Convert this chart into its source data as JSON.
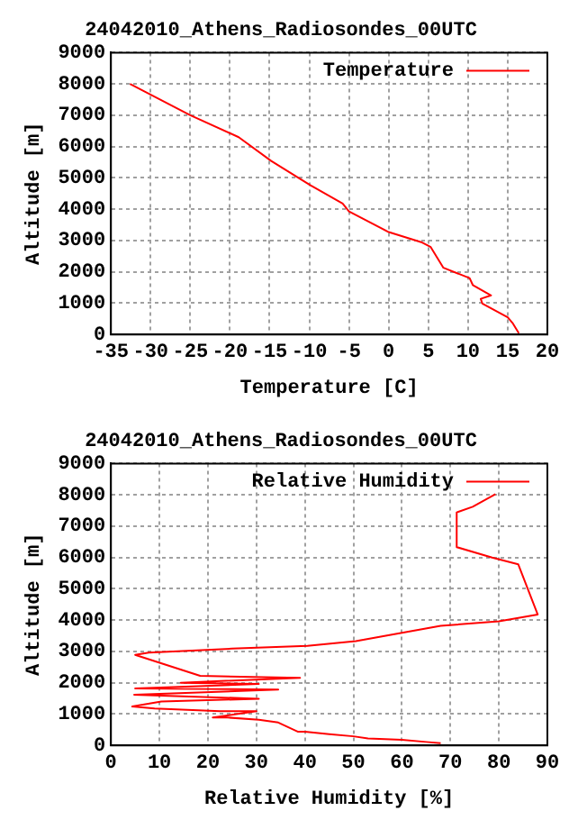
{
  "chart_data": [
    {
      "type": "line",
      "title": "24042010_Athens_Radiosondes_00UTC",
      "xlabel": "Temperature [C]",
      "ylabel": "Altitude [m]",
      "xlim": [
        -35,
        20
      ],
      "xticks": [
        -35,
        -30,
        -25,
        -20,
        -15,
        -10,
        -5,
        0,
        5,
        10,
        15,
        20
      ],
      "ylim": [
        0,
        9000
      ],
      "yticks": [
        0,
        1000,
        2000,
        3000,
        4000,
        5000,
        6000,
        7000,
        8000,
        9000
      ],
      "grid": true,
      "legend": "top right",
      "series": [
        {
          "name": "Temperature",
          "color": "#ff0000",
          "x": [
            -32.6,
            -25,
            -18.9,
            -14.8,
            -9.9,
            -5.8,
            -5,
            0,
            4.1,
            5.3,
            6.9,
            10.2,
            10.6,
            12.9,
            11.6,
            11.8,
            15,
            15.6,
            16.4
          ],
          "values": [
            8000,
            7000,
            6300,
            5540,
            4770,
            4180,
            3930,
            3270,
            2950,
            2790,
            2130,
            1800,
            1580,
            1250,
            1140,
            990,
            550,
            370,
            40
          ]
        }
      ]
    },
    {
      "type": "line",
      "title": "24042010_Athens_Radiosondes_00UTC",
      "xlabel": "Relative Humidity [%]",
      "ylabel": "Altitude [m]",
      "xlim": [
        0,
        90
      ],
      "xticks": [
        0,
        10,
        20,
        30,
        40,
        50,
        60,
        70,
        80,
        90
      ],
      "ylim": [
        0,
        9000
      ],
      "yticks": [
        0,
        1000,
        2000,
        3000,
        4000,
        5000,
        6000,
        7000,
        8000,
        9000
      ],
      "grid": true,
      "legend": "top right",
      "series": [
        {
          "name": "Relative Humidity",
          "color": "#ff0000",
          "x": [
            68,
            65,
            60,
            53,
            50,
            45,
            40,
            38.5,
            34.5,
            30.5,
            24,
            21,
            30,
            22.5,
            9,
            4.4,
            10.4,
            30.5,
            4.8,
            34.5,
            5,
            30.5,
            14.4,
            39,
            18.4,
            5,
            7.8,
            25,
            40.5,
            50.5,
            68,
            80,
            88,
            84,
            78.6,
            71.3,
            71.3,
            74.6,
            79.3
          ],
          "values": [
            70,
            110,
            180,
            220,
            290,
            360,
            440,
            440,
            730,
            820,
            890,
            890,
            1090,
            1090,
            1180,
            1240,
            1400,
            1490,
            1620,
            1780,
            1820,
            1960,
            2000,
            2160,
            2220,
            2890,
            2960,
            3090,
            3180,
            3330,
            3820,
            3960,
            4180,
            5780,
            6000,
            6330,
            7440,
            7620,
            8020
          ]
        }
      ]
    }
  ]
}
